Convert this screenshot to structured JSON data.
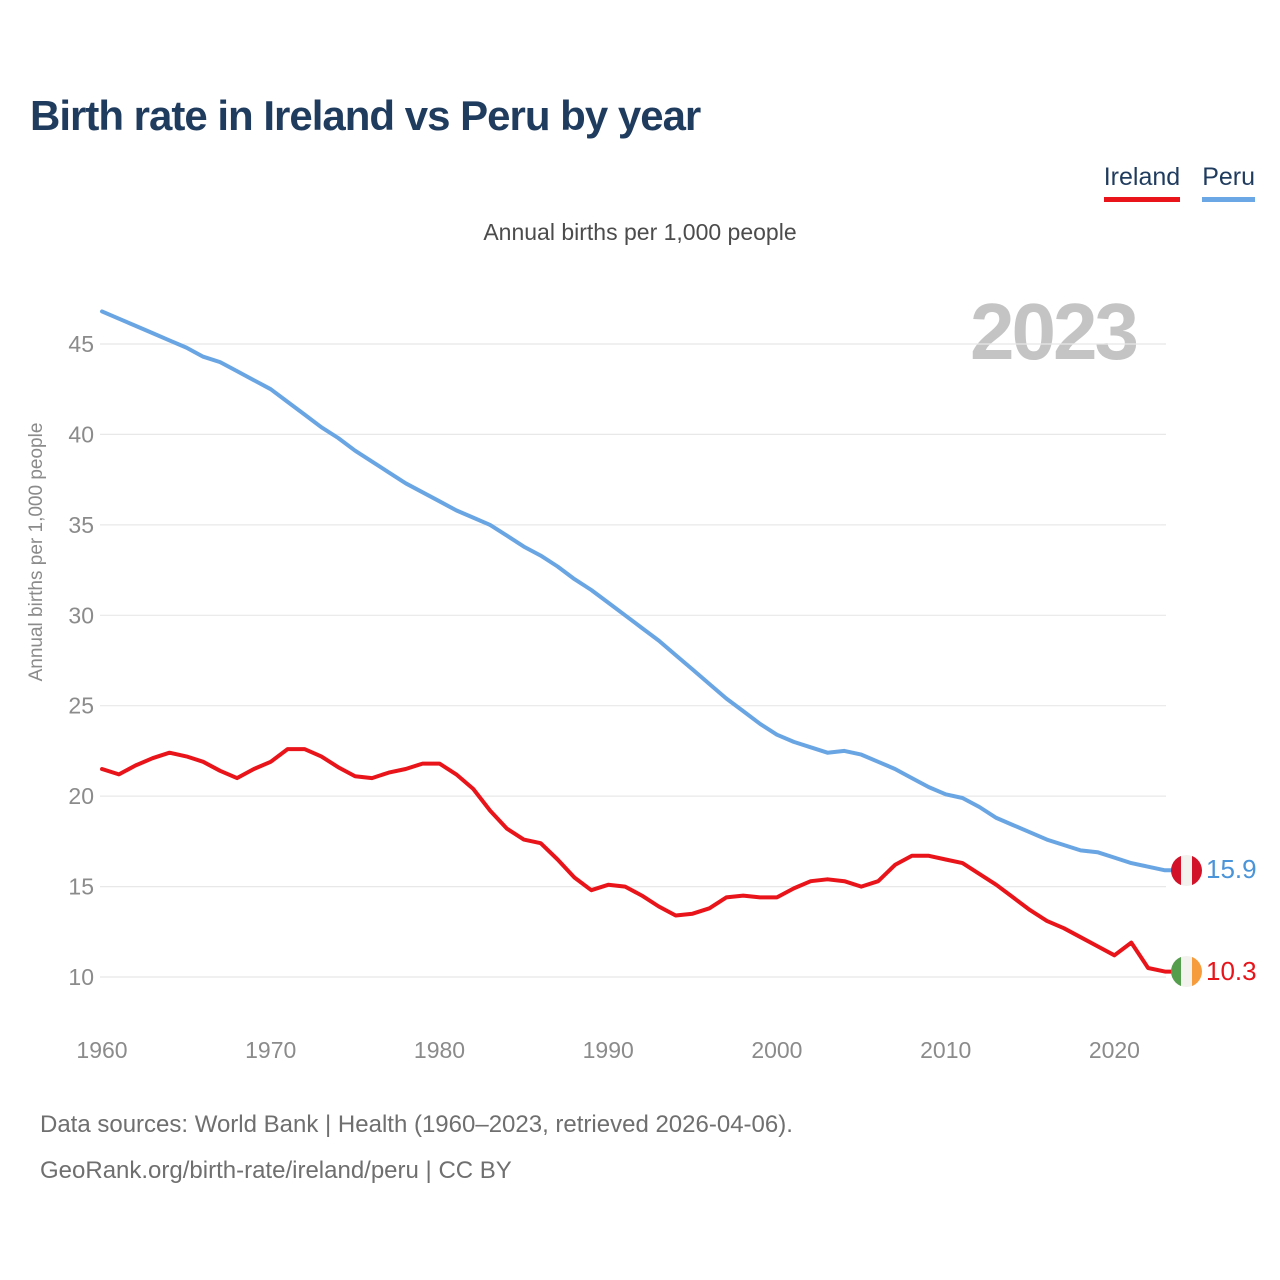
{
  "header": {
    "title": "Birth rate in Ireland vs Peru by year"
  },
  "legend": [
    {
      "label": "Ireland",
      "color": "#e8141a"
    },
    {
      "label": "Peru",
      "color": "#6aa7e4"
    }
  ],
  "subtitle": "Annual births per 1,000 people",
  "watermark": "2023",
  "chart_data": {
    "type": "line",
    "title": "Birth rate in Ireland vs Peru by year",
    "xlabel": "",
    "ylabel": "Annual births per 1,000 people",
    "xlim": [
      1960,
      2023
    ],
    "ylim": [
      10,
      45
    ],
    "grid": "horizontal",
    "legend_position": "top-right",
    "xticks": [
      1960,
      1970,
      1980,
      1990,
      2000,
      2010,
      2020
    ],
    "yticks": [
      10,
      15,
      20,
      25,
      30,
      35,
      40,
      45
    ],
    "x": [
      1960,
      1961,
      1962,
      1963,
      1964,
      1965,
      1966,
      1967,
      1968,
      1969,
      1970,
      1971,
      1972,
      1973,
      1974,
      1975,
      1976,
      1977,
      1978,
      1979,
      1980,
      1981,
      1982,
      1983,
      1984,
      1985,
      1986,
      1987,
      1988,
      1989,
      1990,
      1991,
      1992,
      1993,
      1994,
      1995,
      1996,
      1997,
      1998,
      1999,
      2000,
      2001,
      2002,
      2003,
      2004,
      2005,
      2006,
      2007,
      2008,
      2009,
      2010,
      2011,
      2012,
      2013,
      2014,
      2015,
      2016,
      2017,
      2018,
      2019,
      2020,
      2021,
      2022,
      2023
    ],
    "series": [
      {
        "name": "Ireland",
        "color": "#e8141a",
        "values": [
          21.5,
          21.2,
          21.7,
          22.1,
          22.4,
          22.2,
          21.9,
          21.4,
          21.0,
          21.5,
          21.9,
          22.6,
          22.6,
          22.2,
          21.6,
          21.1,
          21.0,
          21.3,
          21.5,
          21.8,
          21.8,
          21.2,
          20.4,
          19.2,
          18.2,
          17.6,
          17.4,
          16.5,
          15.5,
          14.8,
          15.1,
          15.0,
          14.5,
          13.9,
          13.4,
          13.5,
          13.8,
          14.4,
          14.5,
          14.4,
          14.4,
          14.9,
          15.3,
          15.4,
          15.3,
          15.0,
          15.3,
          16.2,
          16.7,
          16.7,
          16.5,
          16.3,
          15.7,
          15.1,
          14.4,
          13.7,
          13.1,
          12.7,
          12.2,
          11.7,
          11.2,
          11.9,
          10.5,
          10.3
        ]
      },
      {
        "name": "Peru",
        "color": "#69a5e3",
        "values": [
          46.8,
          46.4,
          46.0,
          45.6,
          45.2,
          44.8,
          44.3,
          44.0,
          43.5,
          43.0,
          42.5,
          41.8,
          41.1,
          40.4,
          39.8,
          39.1,
          38.5,
          37.9,
          37.3,
          36.8,
          36.3,
          35.8,
          35.4,
          35.0,
          34.4,
          33.8,
          33.3,
          32.7,
          32.0,
          31.4,
          30.7,
          30.0,
          29.3,
          28.6,
          27.8,
          27.0,
          26.2,
          25.4,
          24.7,
          24.0,
          23.4,
          23.0,
          22.7,
          22.4,
          22.5,
          22.3,
          21.9,
          21.5,
          21.0,
          20.5,
          20.1,
          19.9,
          19.4,
          18.8,
          18.4,
          18.0,
          17.6,
          17.3,
          17.0,
          16.9,
          16.6,
          16.3,
          16.1,
          15.9
        ]
      }
    ],
    "end_labels": [
      {
        "series": "Peru",
        "value": "15.9",
        "flag": "peru",
        "label_color": "#4a94d9"
      },
      {
        "series": "Ireland",
        "value": "10.3",
        "flag": "ireland",
        "label_color": "#e8141a"
      }
    ],
    "flags": {
      "peru": [
        "#d21228",
        "#f4f2ef",
        "#d21228"
      ],
      "ireland": [
        "#559e4e",
        "#f4f2ef",
        "#f79c3d"
      ]
    }
  },
  "footer": {
    "line1": "Data sources: World Bank | Health (1960–2023, retrieved 2026-04-06).",
    "line2": "GeoRank.org/birth-rate/ireland/peru | CC BY"
  }
}
